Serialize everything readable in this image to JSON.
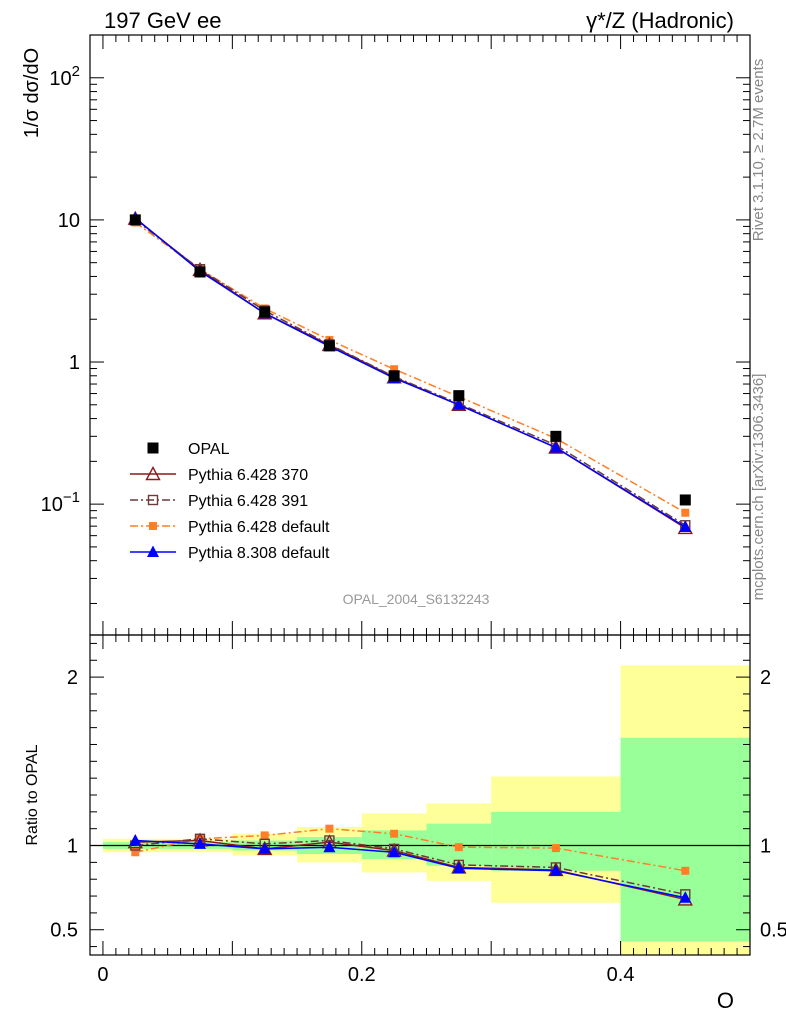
{
  "header": {
    "left_title": "197 GeV ee",
    "right_title": "γ*/Z (Hadronic)"
  },
  "side_labels": {
    "rivet": "Rivet 3.1.10, ≥ 2.7M events",
    "mcplots": "mcplots.cern.ch [arXiv:1306.3436]"
  },
  "analysis_id": "OPAL_2004_S6132243",
  "chart_data": [
    {
      "type": "line",
      "panel": "main",
      "ylabel": "1/σ dσ/dO",
      "yscale": "log",
      "ylim": [
        0.012,
        200
      ],
      "xlim": [
        -0.01,
        0.5
      ],
      "y_tick_labels": [
        "10^-1",
        "1",
        "10",
        "10^2"
      ],
      "x": [
        0.025,
        0.075,
        0.125,
        0.175,
        0.225,
        0.275,
        0.35,
        0.45
      ],
      "series": [
        {
          "name": "OPAL",
          "color": "#000000",
          "marker": "filled-square",
          "line": "none",
          "values": [
            10.0,
            4.3,
            2.25,
            1.3,
            0.8,
            0.58,
            0.3,
            0.107
          ]
        },
        {
          "name": "Pythia 6.428 370",
          "color": "#8b1a1a",
          "marker": "open-triangle",
          "line": "solid",
          "values": [
            10.2,
            4.45,
            2.2,
            1.32,
            0.78,
            0.5,
            0.25,
            0.068
          ]
        },
        {
          "name": "Pythia 6.428 391",
          "color": "#6b3a3a",
          "marker": "open-square",
          "line": "dashdot",
          "values": [
            10.0,
            4.5,
            2.3,
            1.33,
            0.79,
            0.51,
            0.26,
            0.071
          ]
        },
        {
          "name": "Pythia 6.428 default",
          "color": "#ff7f27",
          "marker": "filled-square-small",
          "line": "dashdot",
          "values": [
            9.6,
            4.5,
            2.38,
            1.43,
            0.89,
            0.57,
            0.29,
            0.087
          ]
        },
        {
          "name": "Pythia 8.308 default",
          "color": "#0000ff",
          "marker": "filled-triangle",
          "line": "solid",
          "values": [
            10.3,
            4.35,
            2.2,
            1.29,
            0.77,
            0.5,
            0.25,
            0.069
          ]
        }
      ]
    },
    {
      "type": "line",
      "panel": "ratio",
      "ylabel": "Ratio to OPAL",
      "xlabel": "O",
      "ylim": [
        0.35,
        2.25
      ],
      "xlim": [
        -0.01,
        0.5
      ],
      "y_tick_labels": [
        "0.5",
        "1",
        "2"
      ],
      "x_tick_labels": [
        "0",
        "0.2",
        "0.4"
      ],
      "bins": [
        [
          0.0,
          0.05
        ],
        [
          0.05,
          0.1
        ],
        [
          0.1,
          0.15
        ],
        [
          0.15,
          0.2
        ],
        [
          0.2,
          0.25
        ],
        [
          0.25,
          0.3
        ],
        [
          0.3,
          0.4
        ],
        [
          0.4,
          0.5
        ]
      ],
      "band_inner": {
        "color": "#99ff99",
        "lo": [
          0.98,
          0.98,
          0.97,
          0.95,
          0.92,
          0.88,
          0.85,
          0.43
        ],
        "hi": [
          1.02,
          1.02,
          1.03,
          1.05,
          1.09,
          1.13,
          1.2,
          1.64
        ]
      },
      "band_outer": {
        "color": "#ffff99",
        "lo": [
          0.96,
          0.96,
          0.94,
          0.9,
          0.84,
          0.79,
          0.66,
          0.35
        ],
        "hi": [
          1.04,
          1.04,
          1.07,
          1.11,
          1.19,
          1.25,
          1.41,
          2.07
        ]
      },
      "x": [
        0.025,
        0.075,
        0.125,
        0.175,
        0.225,
        0.275,
        0.35,
        0.45
      ],
      "series": [
        {
          "name": "Pythia 6.428 370",
          "values": [
            1.02,
            1.03,
            0.98,
            1.02,
            0.97,
            0.87,
            0.855,
            0.68
          ]
        },
        {
          "name": "Pythia 6.428 391",
          "values": [
            1.0,
            1.04,
            1.01,
            1.03,
            0.98,
            0.885,
            0.87,
            0.71
          ]
        },
        {
          "name": "Pythia 6.428 default",
          "values": [
            0.96,
            1.04,
            1.06,
            1.1,
            1.07,
            0.99,
            0.985,
            0.85
          ]
        },
        {
          "name": "Pythia 8.308 default",
          "values": [
            1.03,
            1.01,
            0.98,
            0.99,
            0.96,
            0.865,
            0.85,
            0.69
          ]
        }
      ]
    }
  ]
}
